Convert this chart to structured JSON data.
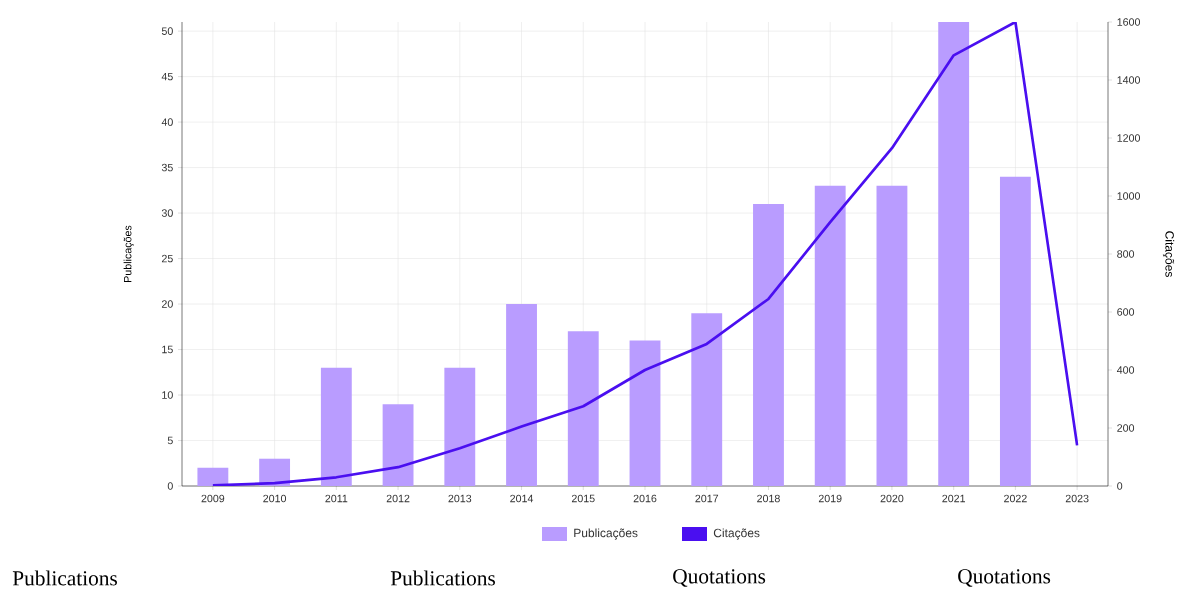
{
  "chart_data": {
    "type": "bar",
    "categories": [
      "2009",
      "2010",
      "2011",
      "2012",
      "2013",
      "2014",
      "2015",
      "2016",
      "2017",
      "2018",
      "2019",
      "2020",
      "2021",
      "2022",
      "2023"
    ],
    "series": [
      {
        "name": "Publicações",
        "color": "#b99cff",
        "values": [
          2,
          3,
          13,
          9,
          13,
          20,
          17,
          16,
          19,
          31,
          33,
          33,
          51,
          34,
          null
        ]
      },
      {
        "name": "Citações",
        "type": "line",
        "axis": "y2",
        "color": "#4a0ff0",
        "values": [
          2,
          10,
          30,
          65,
          130,
          205,
          275,
          400,
          490,
          645,
          910,
          1165,
          1485,
          1600,
          140
        ]
      }
    ],
    "ylabel": "Publicações",
    "y2label": "Citações",
    "ylim": [
      0,
      51
    ],
    "yticks": [
      0,
      5,
      10,
      15,
      20,
      25,
      30,
      35,
      40,
      45,
      50
    ],
    "y2lim": [
      0,
      1600
    ],
    "y2ticks": [
      0,
      200,
      400,
      600,
      800,
      1000,
      1200,
      1400,
      1600
    ],
    "grid": true,
    "legend": "bottom",
    "marker": "none",
    "line_style": "solid",
    "annotations": [
      "Publications",
      "Publications",
      "Quotations",
      "Quotations"
    ]
  }
}
